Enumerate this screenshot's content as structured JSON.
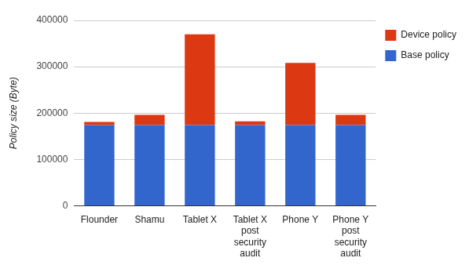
{
  "chart_data": {
    "type": "bar",
    "y_label": "Policy size (Byte)",
    "categories": [
      "Flounder",
      "Shamu",
      "Tablet X",
      "Tablet X post security audit",
      "Phone Y",
      "Phone Y post security audit"
    ],
    "series": [
      {
        "name": "Base policy",
        "color": "#3366cc",
        "values": [
          174000,
          174000,
          174000,
          174000,
          174000,
          174000
        ]
      },
      {
        "name": "Device policy",
        "color": "#dc3912",
        "values": [
          7000,
          22000,
          196000,
          8000,
          134000,
          22000
        ]
      }
    ],
    "stacked": true,
    "ylim": [
      0,
      400000
    ],
    "yticks": [
      0,
      100000,
      200000,
      300000,
      400000
    ],
    "grid": true,
    "legend": "right"
  }
}
